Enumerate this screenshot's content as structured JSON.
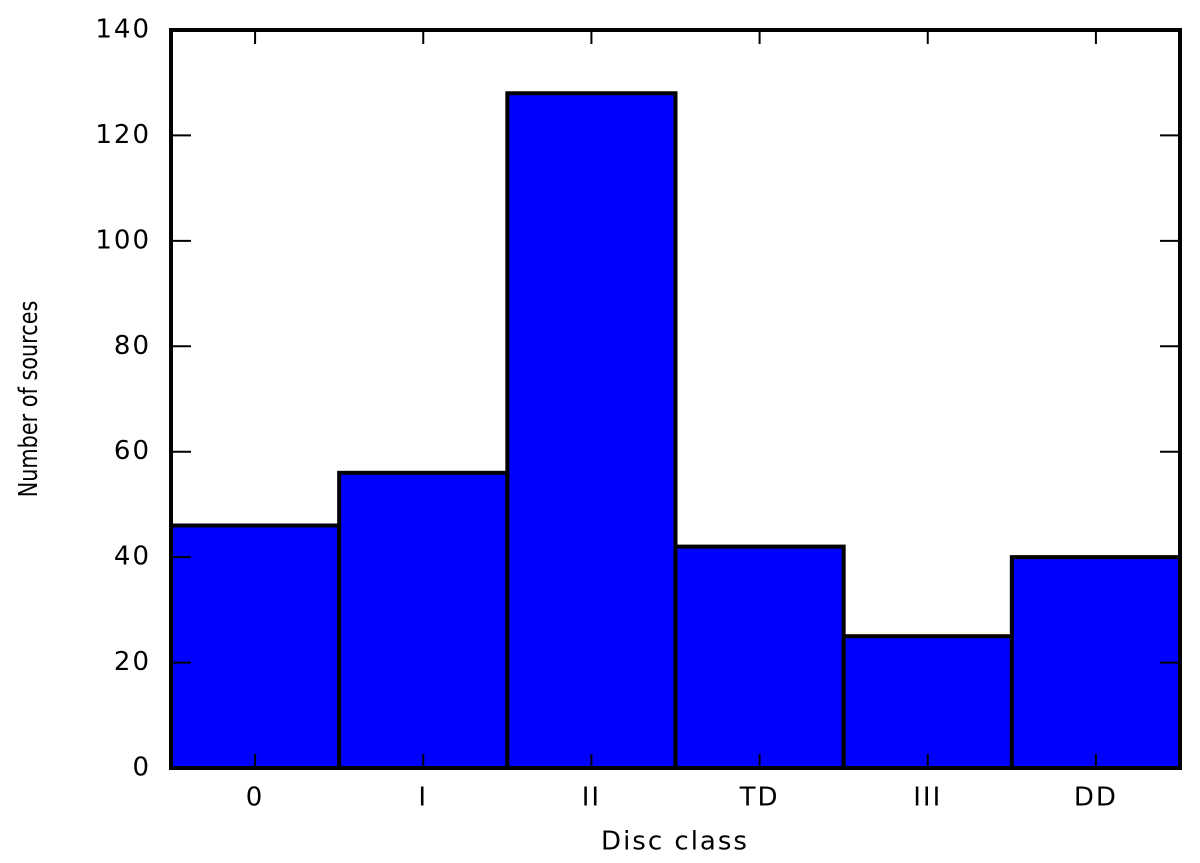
{
  "chart_data": {
    "type": "bar",
    "x_label": "Disc class",
    "y_label": "Number of sources",
    "categories": [
      "0",
      "I",
      "II",
      "TD",
      "III",
      "DD"
    ],
    "values": [
      46,
      56,
      128,
      42,
      25,
      40
    ],
    "color": "#0000ff",
    "ylim": [
      0,
      140
    ],
    "yticks": [
      0,
      20,
      40,
      60,
      80,
      100,
      120,
      140
    ],
    "grid": false
  }
}
